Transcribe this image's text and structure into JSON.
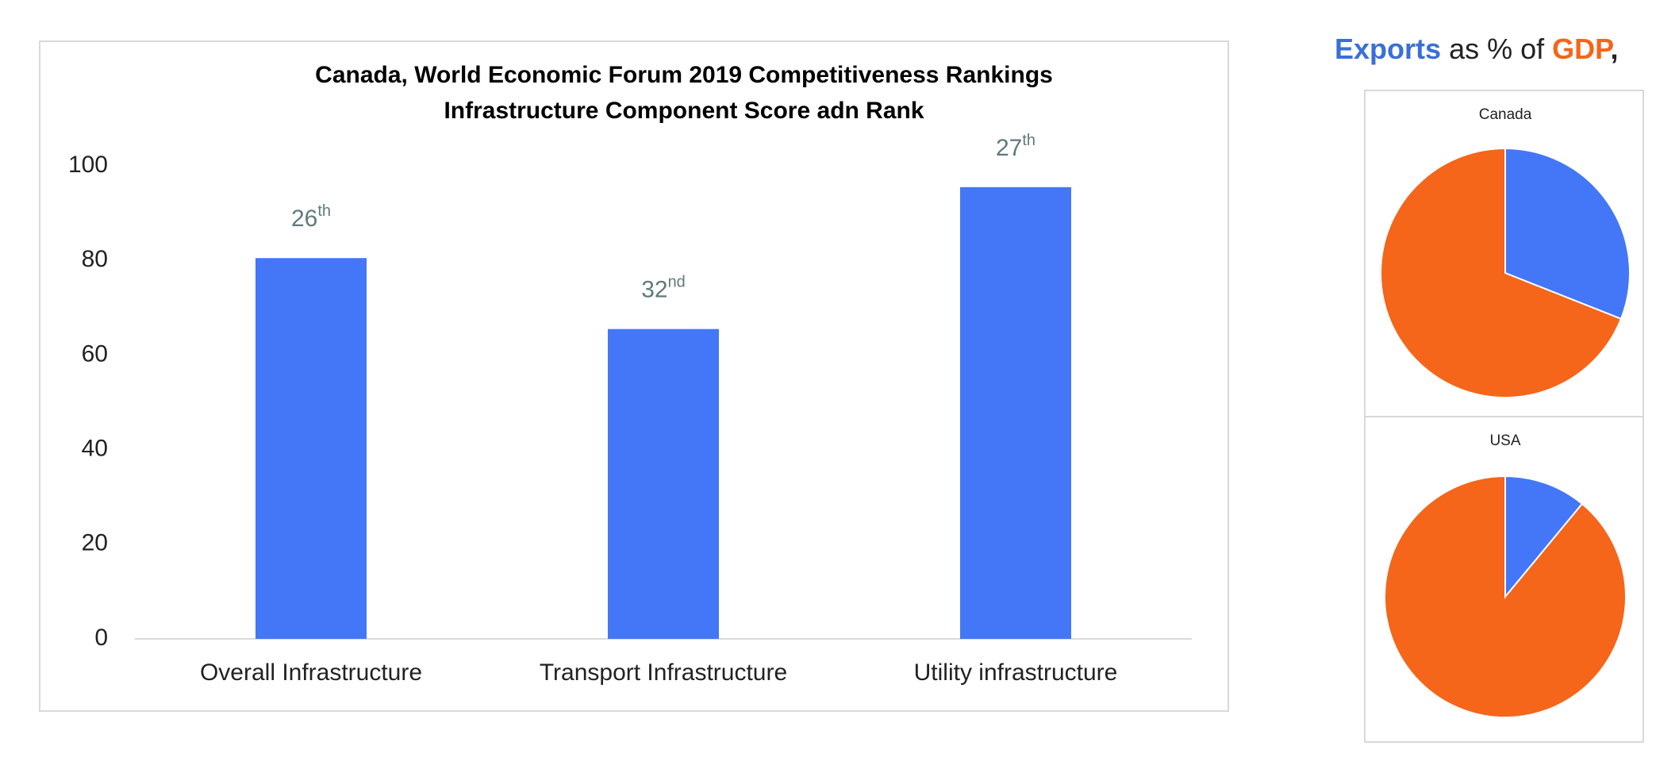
{
  "chart_data": [
    {
      "type": "bar",
      "title": "Canada, World Economic Forum 2019 Competitiveness Rankings",
      "subtitle": "Infrastructure Component Score adn Rank",
      "categories": [
        "Overall Infrastructure",
        "Transport Infrastructure",
        "Utility infrastructure"
      ],
      "values": [
        80.5,
        65.5,
        95.5
      ],
      "color": "#4477f7",
      "annotations": [
        {
          "rank": "26",
          "suffix": "th"
        },
        {
          "rank": "32",
          "suffix": "nd"
        },
        {
          "rank": "27",
          "suffix": "th"
        }
      ],
      "ylim": [
        0,
        100
      ],
      "yticks": [
        0,
        20,
        40,
        60,
        80,
        100
      ],
      "grid": false
    },
    {
      "type": "pie",
      "title": "Canada",
      "values": [
        31,
        69
      ],
      "colors": [
        "#4477f7",
        "#f5651a"
      ]
    },
    {
      "type": "pie",
      "title": "USA",
      "values": [
        11,
        89
      ],
      "colors": [
        "#4477f7",
        "#f5651a"
      ]
    }
  ],
  "pie_header": {
    "exports": "Exports",
    "middle": "as % of",
    "gdp": "GDP",
    "end": ","
  }
}
